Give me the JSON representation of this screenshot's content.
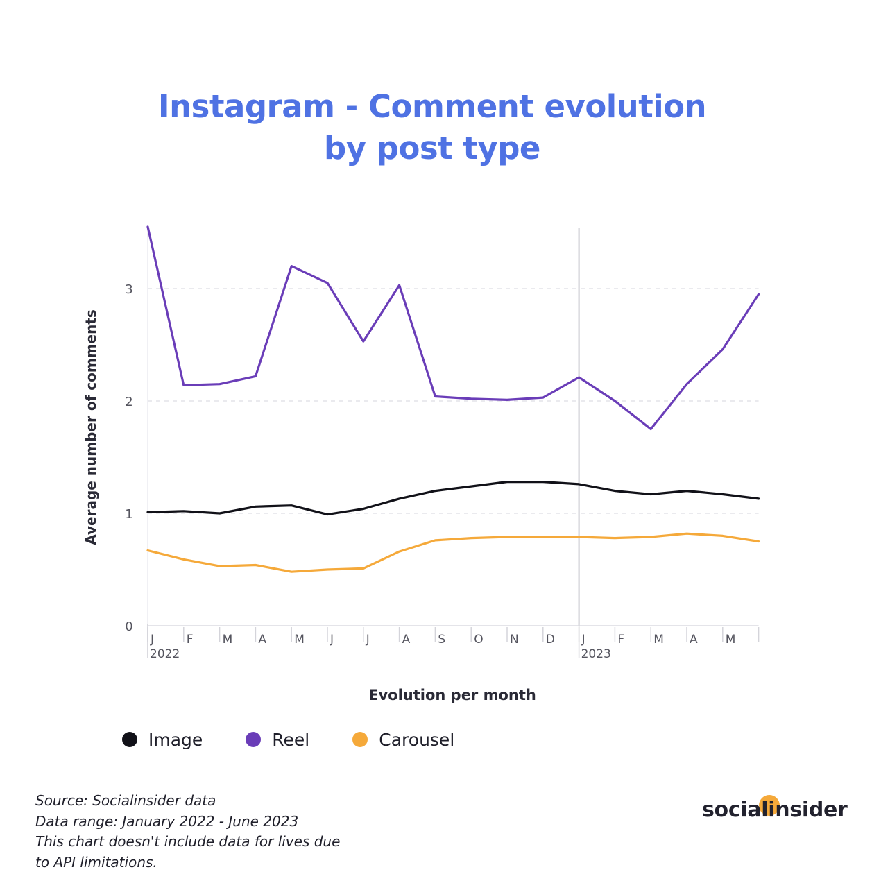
{
  "title": {
    "line1": "Instagram - Comment evolution",
    "line2": "by post type"
  },
  "chart_data": {
    "type": "line",
    "title": "Instagram - Comment evolution by post type",
    "xlabel": "Evolution per month",
    "ylabel": "Average number of comments",
    "ylim": [
      0,
      3.55
    ],
    "yticks": [
      0,
      1,
      2,
      3
    ],
    "grid": true,
    "legend_position": "bottom",
    "categories": [
      "J",
      "F",
      "M",
      "A",
      "M",
      "J",
      "J",
      "A",
      "S",
      "O",
      "N",
      "D",
      "J",
      "F",
      "M",
      "A",
      "M",
      "J"
    ],
    "tick_labels": [
      "J",
      "F",
      "M",
      "A",
      "M",
      "J",
      "J",
      "A",
      "S",
      "O",
      "N",
      "D",
      "J",
      "F",
      "M",
      "A",
      "M"
    ],
    "year_labels": [
      {
        "index": 0,
        "label": "2022"
      },
      {
        "index": 12,
        "label": "2023"
      }
    ],
    "series": [
      {
        "name": "Image",
        "color": "#111118",
        "values": [
          1.01,
          1.02,
          1.0,
          1.06,
          1.07,
          0.99,
          1.04,
          1.13,
          1.2,
          1.24,
          1.28,
          1.28,
          1.26,
          1.2,
          1.17,
          1.2,
          1.17,
          1.13
        ]
      },
      {
        "name": "Reel",
        "color": "#6a3db8",
        "values": [
          3.55,
          2.14,
          2.15,
          2.22,
          3.2,
          3.05,
          2.53,
          3.03,
          2.04,
          2.02,
          2.01,
          2.03,
          2.21,
          2.0,
          1.75,
          2.15,
          2.46,
          2.95
        ]
      },
      {
        "name": "Carousel",
        "color": "#f5a93a",
        "values": [
          0.67,
          0.59,
          0.53,
          0.54,
          0.48,
          0.5,
          0.51,
          0.66,
          0.76,
          0.78,
          0.79,
          0.79,
          0.79,
          0.78,
          0.79,
          0.82,
          0.8,
          0.75
        ]
      }
    ]
  },
  "legend": [
    {
      "label": "Image",
      "color": "#111118"
    },
    {
      "label": "Reel",
      "color": "#6a3db8"
    },
    {
      "label": "Carousel",
      "color": "#f5a93a"
    }
  ],
  "notes": {
    "source": "Source: Socialinsider data",
    "range": "Data range: January 2022 - June 2023",
    "line3": "This chart doesn't include data for lives due",
    "line4": "to API limitations."
  },
  "brand": {
    "logo_text": "socialinsider",
    "accent": "#f5a93a",
    "title_color": "#4f72e3"
  }
}
